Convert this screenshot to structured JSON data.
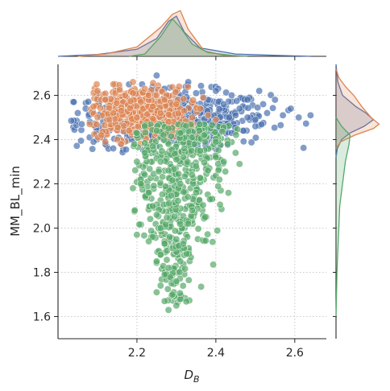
{
  "chart_data": {
    "type": "scatter",
    "subtype": "jointplot",
    "title": "",
    "xlabel": "D",
    "xlabel_subscript": "B",
    "ylabel": "MM_BL_min",
    "xlim": [
      2.0,
      2.68
    ],
    "ylim": [
      1.5,
      2.74
    ],
    "x_ticks": [
      2.2,
      2.4,
      2.6
    ],
    "x_tick_labels": [
      "2.2",
      "2.4",
      "2.6"
    ],
    "y_ticks": [
      1.6,
      1.8,
      2.0,
      2.2,
      2.4,
      2.6
    ],
    "y_tick_labels": [
      "1.6",
      "1.8",
      "2.0",
      "2.2",
      "2.4",
      "2.6"
    ],
    "grid": true,
    "grid_style": "dotted",
    "legend": "none",
    "marginals": [
      "top-kde",
      "right-kde"
    ],
    "series": [
      {
        "color": "#4c72b0",
        "approx_cluster": {
          "x_center": 2.29,
          "x_range": [
            2.03,
            2.64
          ],
          "y_center": 2.49,
          "y_range": [
            2.34,
            2.66
          ]
        },
        "points": [
          [
            2.04,
            2.57
          ],
          [
            2.05,
            2.52
          ],
          [
            2.06,
            2.47
          ],
          [
            2.07,
            2.54
          ],
          [
            2.08,
            2.41
          ],
          [
            2.1,
            2.61
          ],
          [
            2.12,
            2.38
          ],
          [
            2.14,
            2.36
          ],
          [
            2.18,
            2.65
          ],
          [
            2.24,
            2.64
          ],
          [
            2.27,
            2.63
          ],
          [
            2.3,
            2.62
          ],
          [
            2.35,
            2.61
          ],
          [
            2.38,
            2.58
          ],
          [
            2.4,
            2.62
          ],
          [
            2.42,
            2.56
          ],
          [
            2.44,
            2.6
          ],
          [
            2.46,
            2.54
          ],
          [
            2.48,
            2.5
          ],
          [
            2.5,
            2.46
          ],
          [
            2.52,
            2.56
          ],
          [
            2.53,
            2.52
          ],
          [
            2.55,
            2.58
          ],
          [
            2.57,
            2.51
          ],
          [
            2.59,
            2.54
          ],
          [
            2.61,
            2.5
          ],
          [
            2.64,
            2.51
          ],
          [
            2.25,
            2.69
          ],
          [
            2.33,
            2.66
          ],
          [
            2.45,
            2.51
          ],
          [
            2.44,
            2.43
          ],
          [
            2.47,
            2.44
          ],
          [
            2.41,
            2.47
          ],
          [
            2.5,
            2.49
          ],
          [
            2.36,
            2.52
          ],
          [
            2.39,
            2.45
          ],
          [
            2.13,
            2.44
          ],
          [
            2.09,
            2.39
          ],
          [
            2.48,
            2.58
          ],
          [
            2.51,
            2.62
          ]
        ]
      },
      {
        "color": "#dd8452",
        "approx_cluster": {
          "x_center": 2.2,
          "x_range": [
            2.08,
            2.4
          ],
          "y_center": 2.52,
          "y_range": [
            2.38,
            2.67
          ]
        },
        "points": [
          [
            2.08,
            2.47
          ],
          [
            2.09,
            2.55
          ],
          [
            2.1,
            2.62
          ],
          [
            2.11,
            2.42
          ],
          [
            2.12,
            2.58
          ],
          [
            2.13,
            2.49
          ],
          [
            2.14,
            2.65
          ],
          [
            2.15,
            2.4
          ],
          [
            2.16,
            2.53
          ],
          [
            2.17,
            2.6
          ],
          [
            2.18,
            2.44
          ],
          [
            2.19,
            2.66
          ],
          [
            2.2,
            2.5
          ],
          [
            2.21,
            2.57
          ],
          [
            2.22,
            2.63
          ],
          [
            2.23,
            2.46
          ],
          [
            2.24,
            2.55
          ],
          [
            2.25,
            2.6
          ],
          [
            2.26,
            2.52
          ],
          [
            2.27,
            2.58
          ],
          [
            2.28,
            2.48
          ],
          [
            2.3,
            2.56
          ],
          [
            2.32,
            2.53
          ],
          [
            2.34,
            2.5
          ],
          [
            2.36,
            2.54
          ],
          [
            2.38,
            2.51
          ],
          [
            2.4,
            2.49
          ],
          [
            2.12,
            2.39
          ],
          [
            2.2,
            2.41
          ],
          [
            2.16,
            2.38
          ],
          [
            2.19,
            2.61
          ],
          [
            2.23,
            2.6
          ],
          [
            2.14,
            2.52
          ],
          [
            2.1,
            2.5
          ],
          [
            2.26,
            2.45
          ],
          [
            2.29,
            2.44
          ]
        ]
      },
      {
        "color": "#55a868",
        "approx_cluster": {
          "x_center": 2.3,
          "x_range": [
            2.19,
            2.46
          ],
          "y_center": 2.25,
          "y_range": [
            1.63,
            2.47
          ]
        },
        "points": [
          [
            2.2,
            2.43
          ],
          [
            2.22,
            2.46
          ],
          [
            2.25,
            2.44
          ],
          [
            2.28,
            2.45
          ],
          [
            2.31,
            2.43
          ],
          [
            2.34,
            2.41
          ],
          [
            2.37,
            2.42
          ],
          [
            2.4,
            2.39
          ],
          [
            2.43,
            2.38
          ],
          [
            2.45,
            2.34
          ],
          [
            2.46,
            2.29
          ],
          [
            2.42,
            2.3
          ],
          [
            2.38,
            2.26
          ],
          [
            2.34,
            2.24
          ],
          [
            2.2,
            2.3
          ],
          [
            2.21,
            2.22
          ],
          [
            2.23,
            2.16
          ],
          [
            2.24,
            2.1
          ],
          [
            2.25,
            2.06
          ],
          [
            2.26,
            2.0
          ],
          [
            2.24,
            1.96
          ],
          [
            2.27,
            1.93
          ],
          [
            2.3,
            1.95
          ],
          [
            2.33,
            2.02
          ],
          [
            2.34,
            2.08
          ],
          [
            2.35,
            2.16
          ],
          [
            2.31,
            2.2
          ],
          [
            2.28,
            2.26
          ],
          [
            2.26,
            1.88
          ],
          [
            2.25,
            1.85
          ],
          [
            2.28,
            1.82
          ],
          [
            2.31,
            1.85
          ],
          [
            2.27,
            1.79
          ],
          [
            2.3,
            1.76
          ],
          [
            2.26,
            1.74
          ],
          [
            2.29,
            1.7
          ],
          [
            2.27,
            1.67
          ],
          [
            2.3,
            1.65
          ],
          [
            2.28,
            1.63
          ],
          [
            2.25,
            1.71
          ],
          [
            2.2,
            1.97
          ],
          [
            2.23,
            1.94
          ],
          [
            2.19,
            2.18
          ],
          [
            2.21,
            2.2
          ],
          [
            2.36,
            2.35
          ],
          [
            2.32,
            2.36
          ],
          [
            2.28,
            2.38
          ],
          [
            2.24,
            2.37
          ],
          [
            2.4,
            2.32
          ],
          [
            2.35,
            2.28
          ],
          [
            2.3,
            2.31
          ],
          [
            2.26,
            2.3
          ],
          [
            2.22,
            2.34
          ]
        ]
      }
    ],
    "marginal_top_kde": [
      {
        "color": "#4c72b0",
        "points": [
          [
            2.0,
            0.0
          ],
          [
            2.1,
            0.04
          ],
          [
            2.2,
            0.15
          ],
          [
            2.25,
            0.38
          ],
          [
            2.28,
            0.75
          ],
          [
            2.3,
            0.86
          ],
          [
            2.32,
            0.52
          ],
          [
            2.36,
            0.18
          ],
          [
            2.45,
            0.05
          ],
          [
            2.55,
            0.02
          ],
          [
            2.64,
            0.0
          ]
        ]
      },
      {
        "color": "#dd8452",
        "points": [
          [
            2.05,
            0.0
          ],
          [
            2.12,
            0.05
          ],
          [
            2.2,
            0.2
          ],
          [
            2.26,
            0.62
          ],
          [
            2.29,
            0.9
          ],
          [
            2.31,
            0.98
          ],
          [
            2.33,
            0.58
          ],
          [
            2.37,
            0.12
          ],
          [
            2.42,
            0.02
          ],
          [
            2.48,
            0.0
          ]
        ]
      },
      {
        "color": "#55a868",
        "points": [
          [
            2.18,
            0.0
          ],
          [
            2.22,
            0.05
          ],
          [
            2.26,
            0.42
          ],
          [
            2.29,
            0.8
          ],
          [
            2.31,
            0.62
          ],
          [
            2.34,
            0.26
          ],
          [
            2.38,
            0.08
          ],
          [
            2.44,
            0.02
          ],
          [
            2.48,
            0.0
          ]
        ]
      }
    ],
    "marginal_right_kde": [
      {
        "color": "#4c72b0",
        "points": [
          [
            2.74,
            0.0
          ],
          [
            2.66,
            0.04
          ],
          [
            2.6,
            0.14
          ],
          [
            2.55,
            0.42
          ],
          [
            2.52,
            0.64
          ],
          [
            2.49,
            0.8
          ],
          [
            2.46,
            0.6
          ],
          [
            2.43,
            0.3
          ],
          [
            2.4,
            0.12
          ],
          [
            2.36,
            0.03
          ],
          [
            2.32,
            0.0
          ]
        ]
      },
      {
        "color": "#dd8452",
        "points": [
          [
            2.72,
            0.0
          ],
          [
            2.68,
            0.06
          ],
          [
            2.64,
            0.2
          ],
          [
            2.6,
            0.38
          ],
          [
            2.55,
            0.55
          ],
          [
            2.5,
            0.75
          ],
          [
            2.47,
            0.92
          ],
          [
            2.45,
            0.8
          ],
          [
            2.42,
            0.4
          ],
          [
            2.39,
            0.1
          ],
          [
            2.36,
            0.0
          ]
        ]
      },
      {
        "color": "#55a868",
        "points": [
          [
            2.5,
            0.0
          ],
          [
            2.46,
            0.12
          ],
          [
            2.42,
            0.3
          ],
          [
            2.38,
            0.28
          ],
          [
            2.3,
            0.2
          ],
          [
            2.2,
            0.14
          ],
          [
            2.1,
            0.08
          ],
          [
            2.0,
            0.06
          ],
          [
            1.9,
            0.04
          ],
          [
            1.8,
            0.02
          ],
          [
            1.7,
            0.01
          ],
          [
            1.6,
            0.0
          ]
        ]
      }
    ]
  }
}
